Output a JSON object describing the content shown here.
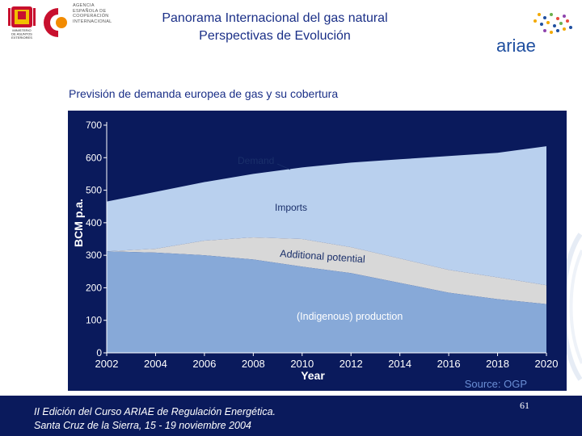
{
  "header": {
    "title_line1": "Panorama Internacional del gas natural",
    "title_line2": "Perspectivas de Evolución",
    "aecid_line1": "AGENCIA",
    "aecid_line2": "ESPAÑOLA DE",
    "aecid_line3": "COOPERACIÓN",
    "aecid_line4": "INTERNACIONAL",
    "ministry_line1": "MINISTERIO",
    "ministry_line2": "DE ASUNTOS",
    "ministry_line3": "EXTERIORES",
    "ariae_text": "ariae"
  },
  "slide": {
    "subtitle": "Previsión de demanda europea de gas y su cobertura",
    "source": "Source: OGP"
  },
  "footer": {
    "line1": "II Edición del Curso ARIAE de Regulación Energética.",
    "line2": "Santa Cruz de la Sierra, 15 - 19 noviembre 2004",
    "page_number": "61"
  },
  "chart_data": {
    "type": "area",
    "x": [
      2002,
      2004,
      2006,
      2008,
      2010,
      2012,
      2014,
      2016,
      2018,
      2020
    ],
    "xlabel": "Year",
    "ylabel": "BCM p.a.",
    "xlim": [
      2002,
      2020
    ],
    "ylim": [
      0,
      700
    ],
    "yticks": [
      0,
      100,
      200,
      300,
      400,
      500,
      600,
      700
    ],
    "series": [
      {
        "name": "Demand",
        "values": [
          465,
          495,
          525,
          550,
          570,
          585,
          595,
          605,
          615,
          635
        ]
      },
      {
        "name": "(Indigenous) production",
        "values": [
          312,
          308,
          300,
          287,
          265,
          245,
          215,
          185,
          165,
          150
        ]
      },
      {
        "name": "Additional potential",
        "values": [
          312,
          320,
          345,
          355,
          350,
          325,
          290,
          255,
          232,
          208
        ]
      }
    ],
    "labels": {
      "demand": "Demand",
      "imports": "Imports",
      "additional": "Additional potential",
      "production": "(Indigenous) production"
    },
    "colors": {
      "background": "#0a1a5c",
      "imports": "#b9d0ee",
      "additional": "#d8d8d8",
      "production": "#87a9d8",
      "line": "#ffffff"
    }
  }
}
